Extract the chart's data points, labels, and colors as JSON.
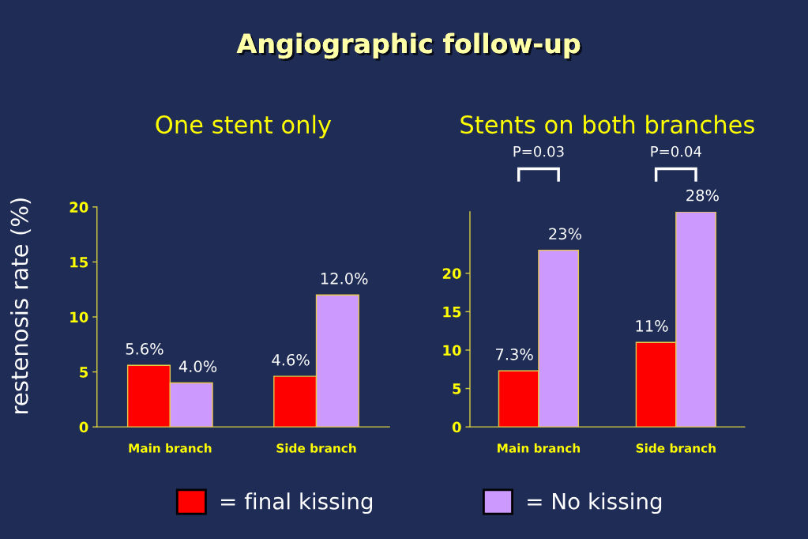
{
  "chart_data": [
    {
      "type": "bar",
      "title": "Angiographic follow-up",
      "subtitle": "One stent only",
      "ylabel": "restenosis rate (%)",
      "categories": [
        "Main branch",
        "Side branch"
      ],
      "series": [
        {
          "name": "= final kissing",
          "color": "#ff0000",
          "values": [
            5.6,
            4.6
          ],
          "value_labels": [
            "5.6%",
            "4.6%"
          ]
        },
        {
          "name": "= No kissing",
          "color": "#cc99ff",
          "values": [
            4.0,
            12.0
          ],
          "value_labels": [
            "4.0%",
            "12.0%"
          ]
        }
      ],
      "ylim": [
        0,
        20
      ],
      "yticks": [
        0,
        5,
        10,
        15,
        20
      ],
      "legend": "bottom"
    },
    {
      "type": "bar",
      "subtitle": "Stents on both branches",
      "categories": [
        "Main branch",
        "Side branch"
      ],
      "series": [
        {
          "color": "#ff0000",
          "values": [
            7.3,
            11
          ],
          "value_labels": [
            "7.3%",
            "11%"
          ]
        },
        {
          "color": "#cc99ff",
          "values": [
            23,
            28
          ],
          "value_labels": [
            "23%",
            "28%"
          ]
        }
      ],
      "ylim": [
        0,
        28
      ],
      "yticks": [
        0,
        5,
        10,
        15,
        20
      ],
      "annotations": [
        "P=0.03",
        "P=0.04"
      ]
    }
  ]
}
